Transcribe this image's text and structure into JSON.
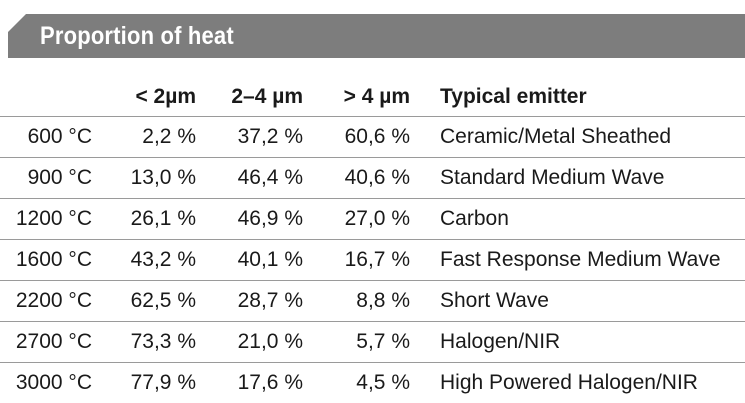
{
  "title": "Proportion of heat",
  "columns": {
    "temp": "",
    "range_a": "< 2µm",
    "range_b": "2–4 µm",
    "range_c": "> 4 µm",
    "emitter": "Typical emitter"
  },
  "rows": [
    {
      "temp": "600 °C",
      "a": "2,2 %",
      "b": "37,2 %",
      "c": "60,6 %",
      "emitter": "Ceramic/Metal Sheathed"
    },
    {
      "temp": "900 °C",
      "a": "13,0 %",
      "b": "46,4 %",
      "c": "40,6 %",
      "emitter": "Standard Medium Wave"
    },
    {
      "temp": "1200 °C",
      "a": "26,1 %",
      "b": "46,9 %",
      "c": "27,0 %",
      "emitter": "Carbon"
    },
    {
      "temp": "1600 °C",
      "a": "43,2 %",
      "b": "40,1 %",
      "c": "16,7 %",
      "emitter": "Fast Response Medium Wave"
    },
    {
      "temp": "2200 °C",
      "a": "62,5 %",
      "b": "28,7 %",
      "c": "8,8 %",
      "emitter": "Short Wave"
    },
    {
      "temp": "2700 °C",
      "a": "73,3 %",
      "b": "21,0 %",
      "c": "5,7 %",
      "emitter": "Halogen/NIR"
    },
    {
      "temp": "3000 °C",
      "a": "77,9 %",
      "b": "17,6 %",
      "c": "4,5 %",
      "emitter": "High Powered Halogen/NIR"
    }
  ],
  "colors": {
    "banner": "#7d7d7d",
    "rule": "#9a9a9a"
  }
}
